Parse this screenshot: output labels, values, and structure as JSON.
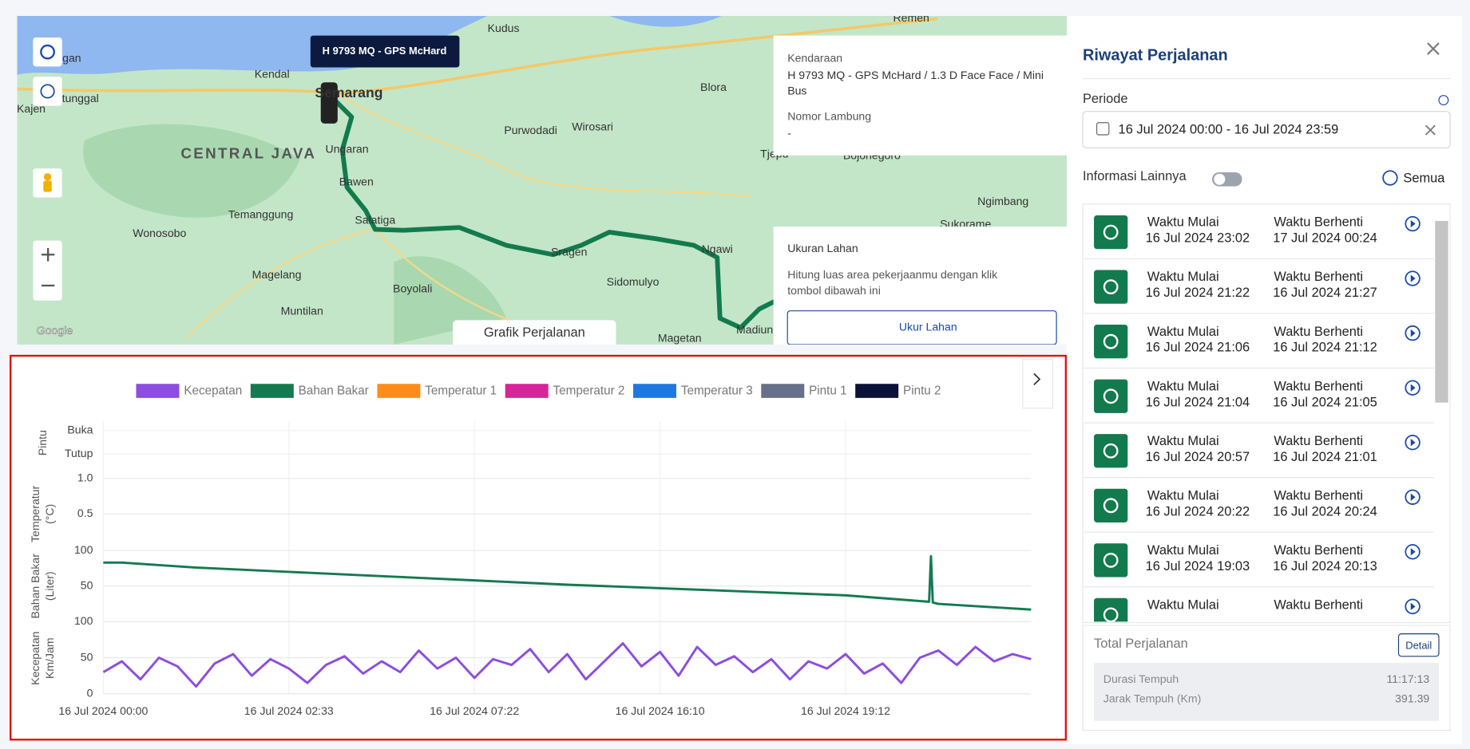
{
  "map": {
    "labels": [
      "Kudus",
      "Remen",
      "kalongan",
      "Kendal",
      "Wonotunggal",
      "Kajen",
      "Blora",
      "Purwodadi",
      "Wirosari",
      "CENTRAL JAVA",
      "Ungaran",
      "Bawen",
      "Salatiga",
      "Temanggung",
      "Wonosobo",
      "Magelang",
      "Boyolali",
      "Sragen",
      "Ngawi",
      "Sidomulyo",
      "Muntilan",
      "Magetan",
      "Madiun",
      "Tjepu",
      "Bojonegoro",
      "Ngimbang",
      "Sukorame",
      "Semarang",
      "Google"
    ],
    "vehicle_tooltip": "H 9793 MQ - GPS McHard",
    "info": {
      "vehicle_label": "Kendaraan",
      "vehicle": [
        "H 9793 MQ - GPS McHard / 1.3 D Face Face / Mini",
        "Bus"
      ],
      "hull_label": "Nomor Lambung",
      "hull": "-"
    },
    "land": {
      "title": "Ukuran Lahan",
      "text": [
        "Hitung luas area pekerjaanmu dengan klik",
        "tombol dibawah ini"
      ],
      "button": "Ukur Lahan"
    },
    "chart_toggle": "Grafik Perjalanan"
  },
  "chart_data": {
    "type": "line",
    "xlim": [
      0,
      100
    ],
    "xticks": [
      {
        "value": 0,
        "label": "16 Jul 2024 00:00"
      },
      {
        "value": 20,
        "label": "16 Jul 2024 02:33"
      },
      {
        "value": 40,
        "label": "16 Jul 2024 07:22"
      },
      {
        "value": 60,
        "label": "16 Jul 2024 16:10"
      },
      {
        "value": 80,
        "label": "16 Jul 2024 19:12"
      }
    ],
    "grid": true,
    "panels": [
      {
        "label": [
          "Pintu"
        ],
        "categories": [
          "Buka",
          "Tutup"
        ]
      },
      {
        "label": [
          "Temperatur",
          "(°C)"
        ],
        "ylim": [
          0,
          1
        ],
        "yticks": [
          0.5,
          {
            "value": 1,
            "label": "1.0"
          }
        ]
      },
      {
        "label": [
          "Bahan Bakar",
          "(Liter)"
        ],
        "ylim": [
          0,
          100
        ],
        "yticks": [
          50,
          100
        ]
      },
      {
        "label": [
          "Kecepatan",
          "Km/Jam"
        ],
        "ylim": [
          0,
          100
        ],
        "yticks": [
          0,
          50,
          100
        ]
      }
    ],
    "series": [
      {
        "name": "Kecepatan",
        "color": "#8c4de0",
        "panel": 3,
        "x": [
          0,
          2,
          4,
          6,
          8,
          10,
          12,
          14,
          16,
          18,
          20,
          22,
          24,
          26,
          28,
          30,
          32,
          34,
          36,
          38,
          40,
          42,
          44,
          46,
          48,
          50,
          52,
          54,
          56,
          58,
          60,
          62,
          64,
          66,
          68,
          70,
          72,
          74,
          76,
          78,
          80,
          82,
          84,
          86,
          88,
          90,
          92,
          94,
          96,
          98,
          100
        ],
        "values": [
          30,
          45,
          20,
          50,
          38,
          10,
          42,
          55,
          25,
          48,
          35,
          15,
          40,
          52,
          28,
          45,
          30,
          60,
          35,
          50,
          22,
          48,
          40,
          62,
          30,
          55,
          20,
          45,
          70,
          38,
          58,
          25,
          65,
          40,
          52,
          30,
          48,
          20,
          45,
          35,
          55,
          28,
          42,
          15,
          50,
          60,
          40,
          65,
          45,
          55,
          48
        ]
      },
      {
        "name": "Bahan Bakar",
        "color": "#147a4f",
        "panel": 2,
        "x": [
          0,
          2,
          10,
          20,
          30,
          40,
          50,
          60,
          70,
          80,
          89,
          89.2,
          89.4,
          90,
          100
        ],
        "values": [
          83,
          83,
          76,
          70,
          64,
          58,
          52,
          47,
          42,
          37,
          28,
          92,
          27,
          25,
          17
        ]
      },
      {
        "name": "Temperatur 1",
        "color": "#ff8c1a",
        "panel": 1
      },
      {
        "name": "Temperatur 2",
        "color": "#d62598",
        "panel": 1
      },
      {
        "name": "Temperatur 3",
        "color": "#1f78e0",
        "panel": 1
      },
      {
        "name": "Pintu 1",
        "color": "#66708a",
        "panel": 0
      },
      {
        "name": "Pintu 2",
        "color": "#0a1238",
        "panel": 0
      }
    ]
  },
  "panel": {
    "title": "Riwayat Perjalanan",
    "period_label": "Periode",
    "period": "16 Jul 2024 00:00 - 16 Jul 2024 23:59",
    "more_info": "Informasi Lainnya",
    "all": "Semua",
    "start_label": "Waktu Mulai",
    "stop_label": "Waktu Berhenti",
    "trips": [
      {
        "start": "16 Jul 2024 23:02",
        "stop": "17 Jul 2024 00:24"
      },
      {
        "start": "16 Jul 2024 21:22",
        "stop": "16 Jul 2024 21:27"
      },
      {
        "start": "16 Jul 2024 21:06",
        "stop": "16 Jul 2024 21:12"
      },
      {
        "start": "16 Jul 2024 21:04",
        "stop": "16 Jul 2024 21:05"
      },
      {
        "start": "16 Jul 2024 20:57",
        "stop": "16 Jul 2024 21:01"
      },
      {
        "start": "16 Jul 2024 20:22",
        "stop": "16 Jul 2024 20:24"
      },
      {
        "start": "16 Jul 2024 19:03",
        "stop": "16 Jul 2024 20:13"
      }
    ],
    "total_title": "Total Perjalanan",
    "detail": "Detail",
    "duration_label": "Durasi Tempuh",
    "duration": "11:17:13",
    "distance_label": "Jarak Tempuh (Km)",
    "distance": "391.39"
  }
}
